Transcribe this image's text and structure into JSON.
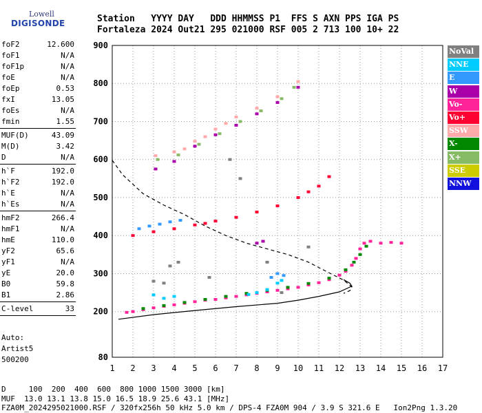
{
  "logo": {
    "line1": "Lowell",
    "line2": "DIGISONDE"
  },
  "header": {
    "row1": "Station   YYYY DAY   DDD HHMMSS P1  FFS S AXN PPS IGA PS",
    "row2": "Fortaleza 2024 Out21 295 021000 RSF 005 2 713 100 10+ 22"
  },
  "params": {
    "group1": [
      {
        "name": "foF2",
        "value": "12.600"
      },
      {
        "name": "foF1",
        "value": "N/A"
      },
      {
        "name": "foF1p",
        "value": "N/A"
      },
      {
        "name": "foE",
        "value": "N/A"
      },
      {
        "name": "foEp",
        "value": "0.53"
      },
      {
        "name": "fxI",
        "value": "13.05"
      },
      {
        "name": "foEs",
        "value": "N/A"
      },
      {
        "name": "fmin",
        "value": "1.55"
      }
    ],
    "group2": [
      {
        "name": "MUF(D)",
        "value": "43.09"
      },
      {
        "name": "M(D)",
        "value": "3.42"
      },
      {
        "name": "D",
        "value": "N/A"
      }
    ],
    "group3": [
      {
        "name": "h`F",
        "value": "192.0"
      },
      {
        "name": "h`F2",
        "value": "192.0"
      },
      {
        "name": "h`E",
        "value": "N/A"
      },
      {
        "name": "h`Es",
        "value": "N/A"
      }
    ],
    "group4": [
      {
        "name": "hmF2",
        "value": "266.4"
      },
      {
        "name": "hmF1",
        "value": "N/A"
      },
      {
        "name": "hmE",
        "value": "110.0"
      },
      {
        "name": "yF2",
        "value": "65.6"
      },
      {
        "name": "yF1",
        "value": "N/A"
      },
      {
        "name": "yE",
        "value": "20.0"
      },
      {
        "name": "B0",
        "value": "59.8"
      },
      {
        "name": "B1",
        "value": "2.86"
      }
    ],
    "group5": [
      {
        "name": "C-level",
        "value": "33"
      }
    ],
    "notes": [
      "Auto:",
      "Artist5",
      "500200"
    ]
  },
  "legend": [
    {
      "label": "NoVal",
      "color": "#808080"
    },
    {
      "label": "NNE",
      "color": "#00ccff"
    },
    {
      "label": "E",
      "color": "#3399ff"
    },
    {
      "label": "W",
      "color": "#aa00aa"
    },
    {
      "label": "Vo-",
      "color": "#ff2299"
    },
    {
      "label": "Vo+",
      "color": "#ff0033"
    },
    {
      "label": "SSW",
      "color": "#ffaaaa"
    },
    {
      "label": "X-",
      "color": "#008800"
    },
    {
      "label": "X+",
      "color": "#88bb66"
    },
    {
      "label": "SSE",
      "color": "#cccc00"
    },
    {
      "label": "NNW",
      "color": "#1111dd"
    }
  ],
  "footer": {
    "line1": "D     100  200  400  600  800 1000 1500 3000 [km]",
    "line2": "MUF  13.0 13.1 13.8 15.0 16.5 18.9 25.6 43.1 [MHz]",
    "line3": "FZA0M_2024295021000.RSF / 320fx256h 50 kHz 5.0 km / DPS-4 FZA0M 904 / 3.9 S 321.6 E   Ion2Png 1.3.20"
  },
  "chart_data": {
    "type": "scatter",
    "xlim": [
      1,
      17
    ],
    "ylim": [
      80,
      900
    ],
    "x_ticks": [
      "1",
      "2",
      "3",
      "4",
      "5",
      "6",
      "7",
      "8",
      "9",
      "10",
      "11",
      "12",
      "13",
      "14",
      "15",
      "16",
      "17"
    ],
    "y_ticks": [
      "80",
      "200",
      "300",
      "400",
      "500",
      "600",
      "700",
      "800",
      "900"
    ],
    "grid": true,
    "series": [
      {
        "name": "Vo-",
        "points": [
          [
            1.7,
            198
          ],
          [
            2,
            200
          ],
          [
            2.5,
            205
          ],
          [
            3,
            210
          ],
          [
            3.5,
            214
          ],
          [
            4,
            218
          ],
          [
            4.5,
            222
          ],
          [
            5,
            226
          ],
          [
            5.5,
            230
          ],
          [
            6,
            232
          ],
          [
            6.5,
            236
          ],
          [
            7,
            240
          ],
          [
            7.5,
            244
          ],
          [
            8,
            248
          ],
          [
            8.5,
            252
          ],
          [
            9,
            256
          ],
          [
            9.5,
            260
          ],
          [
            10,
            264
          ],
          [
            10.5,
            270
          ],
          [
            11,
            276
          ],
          [
            11.5,
            284
          ],
          [
            12,
            296
          ],
          [
            12.3,
            306
          ],
          [
            12.6,
            322
          ],
          [
            12.8,
            340
          ],
          [
            13,
            365
          ],
          [
            13.2,
            380
          ],
          [
            13.5,
            385
          ],
          [
            14,
            380
          ],
          [
            14.5,
            382
          ],
          [
            15,
            380
          ]
        ]
      },
      {
        "name": "X-",
        "points": [
          [
            2.5,
            208
          ],
          [
            3.5,
            216
          ],
          [
            4.5,
            224
          ],
          [
            5.5,
            232
          ],
          [
            6.5,
            240
          ],
          [
            7.5,
            248
          ],
          [
            8.5,
            256
          ],
          [
            9.5,
            264
          ],
          [
            10.5,
            274
          ],
          [
            11.5,
            288
          ],
          [
            12.3,
            310
          ],
          [
            12.7,
            330
          ],
          [
            13,
            350
          ],
          [
            13.3,
            372
          ]
        ]
      },
      {
        "name": "Vo+",
        "points": [
          [
            2,
            400
          ],
          [
            3,
            410
          ],
          [
            4,
            418
          ],
          [
            5,
            428
          ],
          [
            5.5,
            432
          ],
          [
            6,
            438
          ],
          [
            7,
            448
          ],
          [
            8,
            462
          ],
          [
            9,
            478
          ],
          [
            10,
            500
          ],
          [
            10.5,
            515
          ],
          [
            11,
            530
          ],
          [
            11.5,
            555
          ]
        ]
      },
      {
        "name": "NNE",
        "points": [
          [
            7.6,
            245
          ],
          [
            8,
            250
          ],
          [
            8.5,
            258
          ],
          [
            9,
            275
          ],
          [
            9.2,
            282
          ],
          [
            3,
            244
          ],
          [
            3.5,
            235
          ],
          [
            4,
            240
          ]
        ]
      },
      {
        "name": "E",
        "points": [
          [
            8.7,
            290
          ],
          [
            9,
            300
          ],
          [
            9.3,
            295
          ],
          [
            2.3,
            418
          ],
          [
            2.8,
            425
          ],
          [
            3.3,
            430
          ],
          [
            3.8,
            436
          ],
          [
            4.3,
            440
          ]
        ]
      },
      {
        "name": "W",
        "points": [
          [
            3.1,
            575
          ],
          [
            4,
            595
          ],
          [
            5,
            635
          ],
          [
            6,
            665
          ],
          [
            7,
            690
          ],
          [
            8,
            720
          ],
          [
            9,
            750
          ],
          [
            10,
            790
          ],
          [
            8,
            380
          ],
          [
            8.3,
            385
          ]
        ]
      },
      {
        "name": "SSW",
        "points": [
          [
            3.1,
            610
          ],
          [
            4,
            620
          ],
          [
            4.5,
            628
          ],
          [
            5,
            648
          ],
          [
            5.5,
            660
          ],
          [
            6,
            680
          ],
          [
            6.5,
            695
          ],
          [
            7,
            712
          ],
          [
            8,
            735
          ],
          [
            9,
            765
          ],
          [
            10,
            805
          ]
        ]
      },
      {
        "name": "X+",
        "points": [
          [
            3.2,
            600
          ],
          [
            4.2,
            612
          ],
          [
            5.2,
            640
          ],
          [
            6.2,
            668
          ],
          [
            7.2,
            700
          ],
          [
            8.2,
            728
          ],
          [
            9.2,
            760
          ],
          [
            9.8,
            790
          ]
        ]
      },
      {
        "name": "NoVal",
        "points": [
          [
            3.8,
            320
          ],
          [
            4.2,
            330
          ],
          [
            5.7,
            290
          ],
          [
            6.7,
            600
          ],
          [
            7.2,
            550
          ],
          [
            8.5,
            330
          ],
          [
            9.2,
            250
          ],
          [
            10.5,
            370
          ],
          [
            3,
            280
          ],
          [
            3.5,
            275
          ]
        ]
      }
    ],
    "profile_solid": [
      [
        1.3,
        180
      ],
      [
        3,
        192
      ],
      [
        5,
        203
      ],
      [
        7,
        213
      ],
      [
        9,
        222
      ],
      [
        10,
        230
      ],
      [
        11,
        240
      ],
      [
        12,
        252
      ],
      [
        12.4,
        262
      ],
      [
        12.6,
        267
      ],
      [
        12.5,
        275
      ],
      [
        12.2,
        284
      ]
    ],
    "profile_dashed": [
      [
        1,
        598
      ],
      [
        1.5,
        560
      ],
      [
        2.5,
        510
      ],
      [
        3.5,
        480
      ],
      [
        4.5,
        455
      ],
      [
        5.5,
        425
      ],
      [
        6.5,
        400
      ],
      [
        7.5,
        380
      ],
      [
        8.5,
        365
      ],
      [
        9.5,
        350
      ],
      [
        10.5,
        330
      ],
      [
        11.5,
        302
      ],
      [
        12.2,
        283
      ],
      [
        12.6,
        265
      ],
      [
        12.5,
        255
      ],
      [
        12.2,
        248
      ]
    ]
  }
}
